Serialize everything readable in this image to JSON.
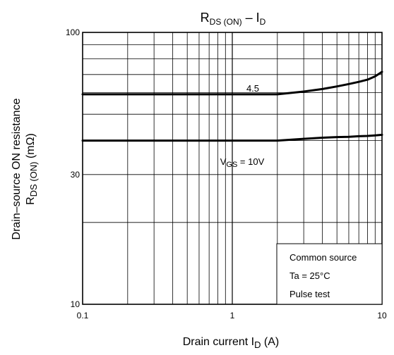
{
  "chart_data": {
    "type": "line",
    "title": {
      "main": "R",
      "sub": "DS (ON)",
      "dash": " – I",
      "sub2": "D"
    },
    "xlabel": {
      "main": "Drain current  I",
      "sub": "D",
      "unit": "  (A)"
    },
    "ylabel": {
      "line1": "Drain–source ON resistance",
      "line2_main": "R",
      "line2_sub": "DS (ON)",
      "line2_unit": "   (mΩ)"
    },
    "x_scale": "log",
    "y_scale": "log",
    "xlim": [
      0.1,
      10
    ],
    "ylim": [
      10,
      100
    ],
    "x_ticks": [
      {
        "value": 0.1,
        "label": "0.1"
      },
      {
        "value": 1,
        "label": "1"
      },
      {
        "value": 10,
        "label": "10"
      }
    ],
    "y_ticks": [
      {
        "value": 10,
        "label": "10"
      },
      {
        "value": 30,
        "label": "30"
      },
      {
        "value": 100,
        "label": "100"
      }
    ],
    "grid": true,
    "series": [
      {
        "name": "4.5",
        "x": [
          0.1,
          0.5,
          1,
          2,
          3,
          4,
          5,
          6,
          7,
          8,
          9,
          10
        ],
        "y": [
          59.2,
          59.2,
          59.2,
          59.2,
          60.6,
          61.9,
          63.3,
          64.6,
          65.8,
          67.0,
          68.9,
          71.6
        ]
      },
      {
        "name": "10V",
        "x": [
          0.1,
          0.5,
          1,
          2,
          3,
          4,
          5,
          6,
          7,
          8,
          9,
          10
        ],
        "y": [
          40.0,
          40.0,
          40.0,
          40.0,
          40.6,
          41.0,
          41.2,
          41.3,
          41.5,
          41.6,
          41.8,
          42.0
        ]
      }
    ],
    "annotations": {
      "curve_45": "4.5",
      "vgs_main": "V",
      "vgs_sub": "GS",
      "vgs_value": " = 10V"
    },
    "legend_box": [
      "Common source",
      "Ta = 25°C",
      "Pulse test"
    ]
  }
}
